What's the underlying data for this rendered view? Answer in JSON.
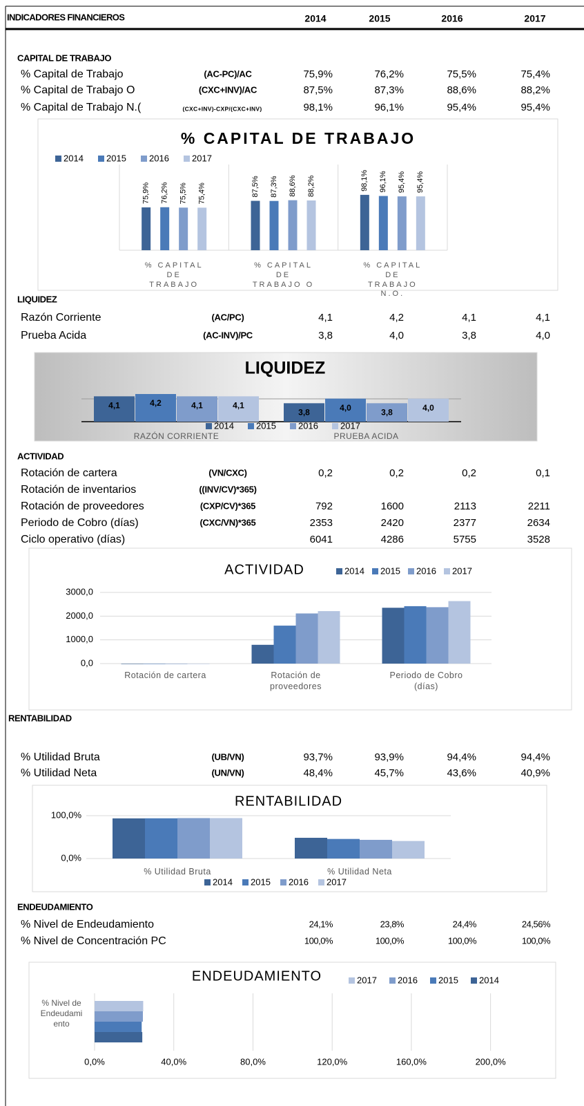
{
  "header": {
    "title": "INDICADORES FINANCIEROS",
    "years": [
      "2014",
      "2015",
      "2016",
      "2017"
    ]
  },
  "sections": [
    {
      "title": "CAPITAL DE TRABAJO",
      "rows": [
        {
          "label": "% Capital de Trabajo",
          "formula": "(AC-PC)/AC",
          "values": [
            "75,9%",
            "76,2%",
            "75,5%",
            "75,4%"
          ]
        },
        {
          "label": "% Capital de Trabajo O",
          "formula": "(CXC+INV)/AC",
          "values": [
            "87,5%",
            "87,3%",
            "88,6%",
            "88,2%"
          ]
        },
        {
          "label": "% Capital de Trabajo N.(",
          "formula": "(CXC+INV)-CXP/(CXC+INV)",
          "values": [
            "98,1%",
            "96,1%",
            "95,4%",
            "95,4%"
          ]
        }
      ]
    },
    {
      "title": "LIQUIDEZ",
      "rows": [
        {
          "label": "Razón Corriente",
          "formula": "(AC/PC)",
          "values": [
            "4,1",
            "4,2",
            "4,1",
            "4,1"
          ]
        },
        {
          "label": "Prueba Acida",
          "formula": "(AC-INV)/PC",
          "values": [
            "3,8",
            "4,0",
            "3,8",
            "4,0"
          ]
        }
      ]
    },
    {
      "title": "ACTIVIDAD",
      "rows": [
        {
          "label": "Rotación de cartera",
          "formula": "(VN/CXC)",
          "values": [
            "0,2",
            "0,2",
            "0,2",
            "0,1"
          ]
        },
        {
          "label": "Rotación de inventarios",
          "formula": "((INV/CV)*365)",
          "values": []
        },
        {
          "label": "Rotación de proveedores",
          "formula": "(CXP/CV)*365",
          "values": [
            "792",
            "1600",
            "2113",
            "2211"
          ]
        },
        {
          "label": "Periodo de Cobro (días)",
          "formula": "(CXC/VN)*365",
          "values": [
            "2353",
            "2420",
            "2377",
            "2634"
          ]
        },
        {
          "label": "Ciclo operativo (días)",
          "values": [
            "6041",
            "4286",
            "5755",
            "3528"
          ]
        }
      ]
    },
    {
      "title": "RENTABILIDAD",
      "rows": [
        {
          "label": "% Utilidad Bruta",
          "formula": "(UB/VN)",
          "values": [
            "93,7%",
            "93,9%",
            "94,4%",
            "94,4%"
          ]
        },
        {
          "label": "% Utilidad Neta",
          "formula": "(UN/VN)",
          "values": [
            "48,4%",
            "45,7%",
            "43,6%",
            "40,9%"
          ]
        }
      ]
    },
    {
      "title": "ENDEUDAMIENTO",
      "rows": [
        {
          "label": "% Nivel de Endeudamiento",
          "values": [
            "24,1%",
            "23,8%",
            "24,4%",
            "24,56%"
          ]
        },
        {
          "label": "% Nivel de Concentración PC",
          "values": [
            "100,0%",
            "100,0%",
            "100,0%",
            "100,0%"
          ]
        }
      ]
    }
  ],
  "chart_data": [
    {
      "type": "bar",
      "title": "% CAPITAL DE TRABAJO",
      "categories": [
        "% CAPITAL DE TRABAJO",
        "% CAPITAL DE TRABAJO O",
        "% CAPITAL DE TRABAJO N.O."
      ],
      "ylim": [
        0,
        120
      ],
      "series": [
        {
          "name": "2014",
          "color": "#3d6496",
          "values": [
            75.9,
            87.5,
            98.1
          ],
          "value_labels": [
            "75,9%",
            "87,5%",
            "98,1%"
          ]
        },
        {
          "name": "2015",
          "color": "#4a7ab8",
          "values": [
            76.2,
            87.3,
            96.1
          ],
          "value_labels": [
            "76,2%",
            "87,3%",
            "96,1%"
          ]
        },
        {
          "name": "2016",
          "color": "#7f9ccb",
          "values": [
            75.5,
            88.6,
            95.4
          ],
          "value_labels": [
            "75,5%",
            "88,6%",
            "95,4%"
          ]
        },
        {
          "name": "2017",
          "color": "#b4c4e0",
          "values": [
            75.4,
            88.2,
            95.4
          ],
          "value_labels": [
            "75,4%",
            "88,2%",
            "95,4%"
          ]
        }
      ]
    },
    {
      "type": "bar",
      "title": "LIQUIDEZ",
      "categories": [
        "RAZÓN CORRIENTE",
        "PRUEBA ACIDA"
      ],
      "ylim": [
        3,
        4.5
      ],
      "series": [
        {
          "name": "2014",
          "color": "#3d6496",
          "values": [
            4.1,
            3.8
          ],
          "value_labels": [
            "4,1",
            "3,8"
          ]
        },
        {
          "name": "2015",
          "color": "#4a7ab8",
          "values": [
            4.2,
            4.0
          ],
          "value_labels": [
            "4,2",
            "4,0"
          ]
        },
        {
          "name": "2016",
          "color": "#7f9ccb",
          "values": [
            4.1,
            3.8
          ],
          "value_labels": [
            "4,1",
            "3,8"
          ]
        },
        {
          "name": "2017",
          "color": "#b4c4e0",
          "values": [
            4.1,
            4.0
          ],
          "value_labels": [
            "4,1",
            "4,0"
          ]
        }
      ]
    },
    {
      "type": "bar",
      "title": "ACTIVIDAD",
      "categories": [
        "Rotación de cartera",
        "Rotación de proveedores",
        "Periodo de Cobro (días)"
      ],
      "ylim": [
        0,
        3000
      ],
      "yticks": [
        {
          "value": 0,
          "label": "0,0"
        },
        {
          "value": 1000,
          "label": "1000,0"
        },
        {
          "value": 2000,
          "label": "2000,0"
        },
        {
          "value": 3000,
          "label": "3000,0"
        }
      ],
      "grid": true,
      "series": [
        {
          "name": "2014",
          "color": "#3d6496",
          "values": [
            0.2,
            792,
            2353
          ]
        },
        {
          "name": "2015",
          "color": "#4a7ab8",
          "values": [
            0.2,
            1600,
            2420
          ]
        },
        {
          "name": "2016",
          "color": "#7f9ccb",
          "values": [
            0.2,
            2113,
            2377
          ]
        },
        {
          "name": "2017",
          "color": "#b4c4e0",
          "values": [
            0.1,
            2211,
            2634
          ]
        }
      ]
    },
    {
      "type": "bar",
      "title": "RENTABILIDAD",
      "categories": [
        "% Utilidad Bruta",
        "% Utilidad Neta"
      ],
      "ylim": [
        0,
        100
      ],
      "yticks": [
        {
          "value": 0,
          "label": "0,0%"
        },
        {
          "value": 100,
          "label": "100,0%"
        }
      ],
      "grid": true,
      "series": [
        {
          "name": "2014",
          "color": "#3d6496",
          "values": [
            93.7,
            48.4
          ]
        },
        {
          "name": "2015",
          "color": "#4a7ab8",
          "values": [
            93.9,
            45.7
          ]
        },
        {
          "name": "2016",
          "color": "#7f9ccb",
          "values": [
            94.4,
            43.6
          ]
        },
        {
          "name": "2017",
          "color": "#b4c4e0",
          "values": [
            94.4,
            40.9
          ]
        }
      ]
    },
    {
      "type": "barh",
      "title": "ENDEUDAMIENTO",
      "categories": [
        "% Nivel de Endeudamiento"
      ],
      "xlim": [
        0,
        220
      ],
      "xticks": [
        {
          "value": 0,
          "label": "0,0%"
        },
        {
          "value": 40,
          "label": "40,0%"
        },
        {
          "value": 80,
          "label": "80,0%"
        },
        {
          "value": 120,
          "label": "120,0%"
        },
        {
          "value": 160,
          "label": "160,0%"
        },
        {
          "value": 200,
          "label": "200,0%"
        }
      ],
      "grid": true,
      "series": [
        {
          "name": "2017",
          "color": "#b4c4e0",
          "values": [
            24.56
          ]
        },
        {
          "name": "2016",
          "color": "#7f9ccb",
          "values": [
            24.4
          ]
        },
        {
          "name": "2015",
          "color": "#4a7ab8",
          "values": [
            23.8
          ]
        },
        {
          "name": "2014",
          "color": "#3d6496",
          "values": [
            24.1
          ]
        }
      ]
    }
  ]
}
